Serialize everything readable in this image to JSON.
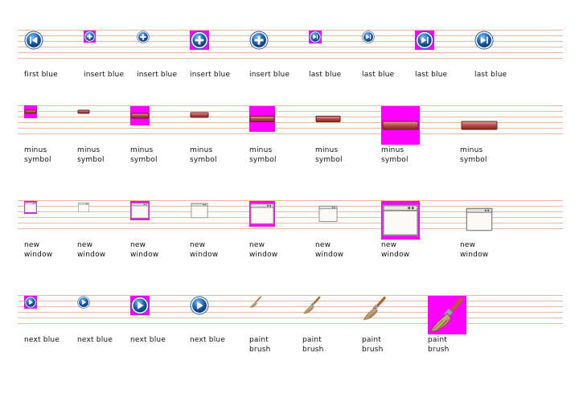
{
  "colors": {
    "guide_line": "#f0b89a",
    "transparent_mask": "#ff00ff",
    "blue_icon": "#1d5fb0",
    "red_bar": "#b74a4a",
    "window_frame": "#8a8a8a",
    "brush_handle": "#b85c28"
  },
  "rows": [
    {
      "name": "row-blue-media",
      "items": [
        {
          "caption": "first blue",
          "icon": "first-blue-icon"
        },
        {
          "caption": "insert blue",
          "icon": "insert-blue-icon"
        },
        {
          "caption": "insert blue",
          "icon": "insert-blue-icon"
        },
        {
          "caption": "insert blue",
          "icon": "insert-blue-icon"
        },
        {
          "caption": "insert blue",
          "icon": "insert-blue-icon"
        },
        {
          "caption": "last blue",
          "icon": "last-blue-icon"
        },
        {
          "caption": "last blue",
          "icon": "last-blue-icon"
        },
        {
          "caption": "last blue",
          "icon": "last-blue-icon"
        },
        {
          "caption": "last blue",
          "icon": "last-blue-icon"
        }
      ]
    },
    {
      "name": "row-minus-symbol",
      "items": [
        {
          "caption": [
            "minus",
            "symbol"
          ],
          "icon": "minus-symbol-icon"
        },
        {
          "caption": [
            "minus",
            "symbol"
          ],
          "icon": "minus-symbol-icon"
        },
        {
          "caption": [
            "minus",
            "symbol"
          ],
          "icon": "minus-symbol-icon"
        },
        {
          "caption": [
            "minus",
            "symbol"
          ],
          "icon": "minus-symbol-icon"
        },
        {
          "caption": [
            "minus",
            "symbol"
          ],
          "icon": "minus-symbol-icon"
        },
        {
          "caption": [
            "minus",
            "symbol"
          ],
          "icon": "minus-symbol-icon"
        },
        {
          "caption": [
            "minus",
            "symbol"
          ],
          "icon": "minus-symbol-icon"
        },
        {
          "caption": [
            "minus",
            "symbol"
          ],
          "icon": "minus-symbol-icon"
        }
      ]
    },
    {
      "name": "row-new-window",
      "items": [
        {
          "caption": [
            "new",
            "window"
          ],
          "icon": "new-window-icon"
        },
        {
          "caption": [
            "new",
            "window"
          ],
          "icon": "new-window-icon"
        },
        {
          "caption": [
            "new",
            "window"
          ],
          "icon": "new-window-icon"
        },
        {
          "caption": [
            "new",
            "window"
          ],
          "icon": "new-window-icon"
        },
        {
          "caption": [
            "new",
            "window"
          ],
          "icon": "new-window-icon"
        },
        {
          "caption": [
            "new",
            "window"
          ],
          "icon": "new-window-icon"
        },
        {
          "caption": [
            "new",
            "window"
          ],
          "icon": "new-window-icon"
        },
        {
          "caption": [
            "new",
            "window"
          ],
          "icon": "new-window-icon"
        }
      ]
    },
    {
      "name": "row-next-and-brush",
      "items": [
        {
          "caption": "next blue",
          "icon": "next-blue-icon"
        },
        {
          "caption": "next blue",
          "icon": "next-blue-icon"
        },
        {
          "caption": "next blue",
          "icon": "next-blue-icon"
        },
        {
          "caption": "next blue",
          "icon": "next-blue-icon"
        },
        {
          "caption": [
            "paint",
            "brush"
          ],
          "icon": "paint-brush-icon"
        },
        {
          "caption": [
            "paint",
            "brush"
          ],
          "icon": "paint-brush-icon"
        },
        {
          "caption": [
            "paint",
            "brush"
          ],
          "icon": "paint-brush-icon"
        },
        {
          "caption": [
            "paint",
            "brush"
          ],
          "icon": "paint-brush-icon"
        }
      ]
    }
  ]
}
